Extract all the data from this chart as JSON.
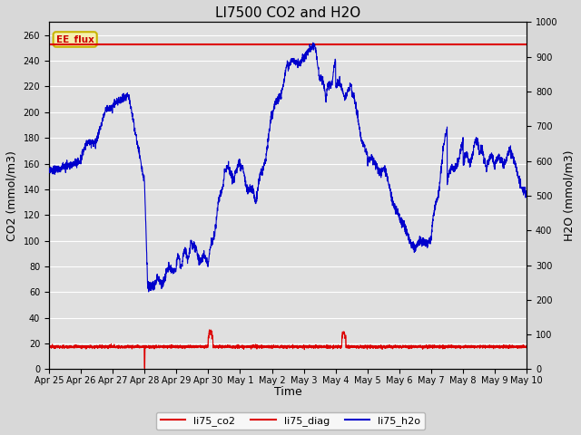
{
  "title": "LI7500 CO2 and H2O",
  "xlabel": "Time",
  "ylabel_left": "CO2 (mmol/m3)",
  "ylabel_right": "H2O (mmol/m3)",
  "ylim_left": [
    0,
    270
  ],
  "ylim_right": [
    0,
    1000
  ],
  "yticks_left": [
    0,
    20,
    40,
    60,
    80,
    100,
    120,
    140,
    160,
    180,
    200,
    220,
    240,
    260
  ],
  "yticks_right": [
    0,
    100,
    200,
    300,
    400,
    500,
    600,
    700,
    800,
    900,
    1000
  ],
  "bg_color": "#d8d8d8",
  "plot_bg_color": "#e0e0e0",
  "grid_color": "#ffffff",
  "ee_flux_line_color": "#dd0000",
  "ee_flux_value": 253,
  "annotation_label": "EE_flux",
  "annotation_text_color": "#cc0000",
  "annotation_bg": "#f5f0b0",
  "annotation_edge": "#c8b400",
  "co2_color": "#dd0000",
  "diag_color": "#dd0000",
  "h2o_color": "#0000cc",
  "title_fontsize": 11,
  "axis_label_fontsize": 9,
  "tick_fontsize": 7,
  "legend_fontsize": 8,
  "xtick_labels": [
    "Apr 25",
    "Apr 26",
    "Apr 27",
    "Apr 28",
    "Apr 29",
    "Apr 30",
    "May 1",
    "May 2",
    "May 3",
    "May 4",
    "May 5",
    "May 6",
    "May 7",
    "May 8",
    "May 9",
    "May 10"
  ],
  "figsize": [
    6.4,
    4.8
  ],
  "dpi": 100
}
